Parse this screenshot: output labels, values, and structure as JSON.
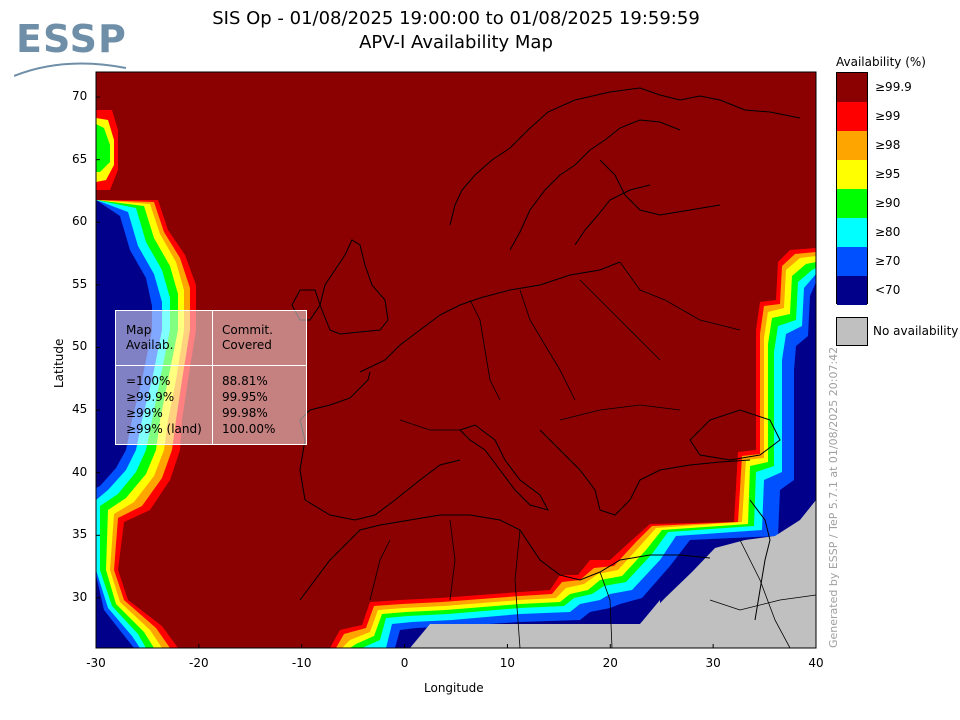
{
  "header": {
    "title_line1": "SIS Op - 01/08/2025 19:00:00 to 01/08/2025 19:59:59",
    "title_line2": "APV-I Availability Map"
  },
  "logo": {
    "text": "ESSP"
  },
  "map": {
    "xlabel": "Longitude",
    "ylabel": "Latitude",
    "x_ticks": [
      "-30",
      "-20",
      "-10",
      "0",
      "10",
      "20",
      "30",
      "40"
    ],
    "y_ticks": [
      "70",
      "65",
      "60",
      "55",
      "50",
      "45",
      "40",
      "35",
      "30"
    ],
    "xlim": [
      -30,
      40
    ],
    "ylim": [
      26,
      72
    ]
  },
  "legend": {
    "title": "Availability (%)",
    "entries": [
      {
        "label": "≥99.9",
        "color": "#8b0000"
      },
      {
        "label": "≥99",
        "color": "#ff0000"
      },
      {
        "label": "≥98",
        "color": "#ffa500"
      },
      {
        "label": "≥95",
        "color": "#ffff00"
      },
      {
        "label": "≥90",
        "color": "#00ff00"
      },
      {
        "label": "≥80",
        "color": "#00ffff"
      },
      {
        "label": "≥70",
        "color": "#0050ff"
      },
      {
        "label": "<70",
        "color": "#00008b"
      }
    ],
    "no_availability": {
      "label": "No availability",
      "color": "#c0c0c0"
    }
  },
  "stats": {
    "col1_header": [
      "Map",
      "Availab."
    ],
    "col2_header": [
      "Commit.",
      "Covered"
    ],
    "rows": [
      {
        "label": "=100%",
        "value": "88.81%"
      },
      {
        "label": "≥99.9%",
        "value": "99.95%"
      },
      {
        "label": "≥99%",
        "value": "99.98%"
      },
      {
        "label": "≥99% (land)",
        "value": "100.00%"
      }
    ]
  },
  "side_note": "Generated by ESSP / TeP 5.7.1 at 01/08/2025 20:07:42"
}
